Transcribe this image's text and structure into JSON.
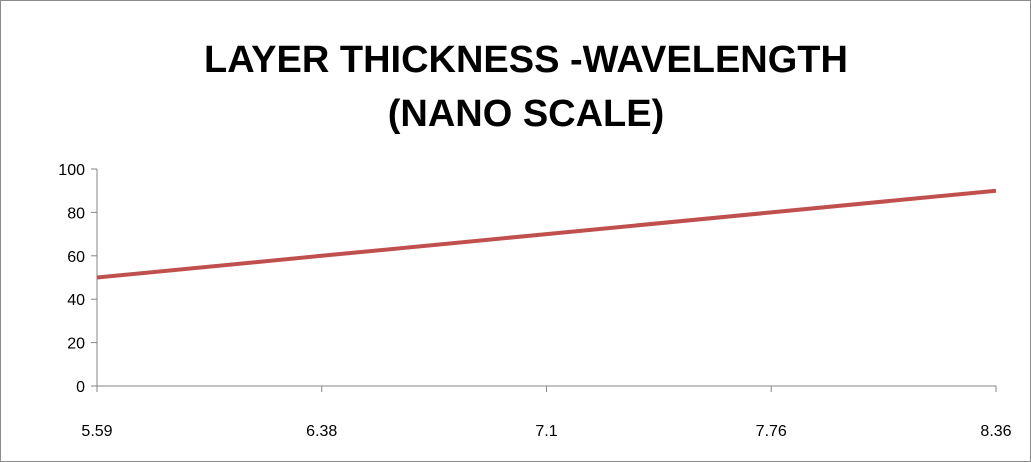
{
  "chart_data": {
    "type": "line",
    "title": "LAYER THICKNESS -WAVELENGTH (NANO SCALE)",
    "categories": [
      "5.59",
      "6.38",
      "7.1",
      "7.76",
      "8.36"
    ],
    "series": [
      {
        "values": [
          50,
          60,
          70,
          80,
          90
        ]
      }
    ],
    "ylim": [
      0,
      100
    ],
    "yticks": [
      0,
      20,
      40,
      60,
      80,
      100
    ],
    "grid": false,
    "legend": "none",
    "colors": {
      "line": "#c0504d",
      "axis": "#868686"
    }
  }
}
